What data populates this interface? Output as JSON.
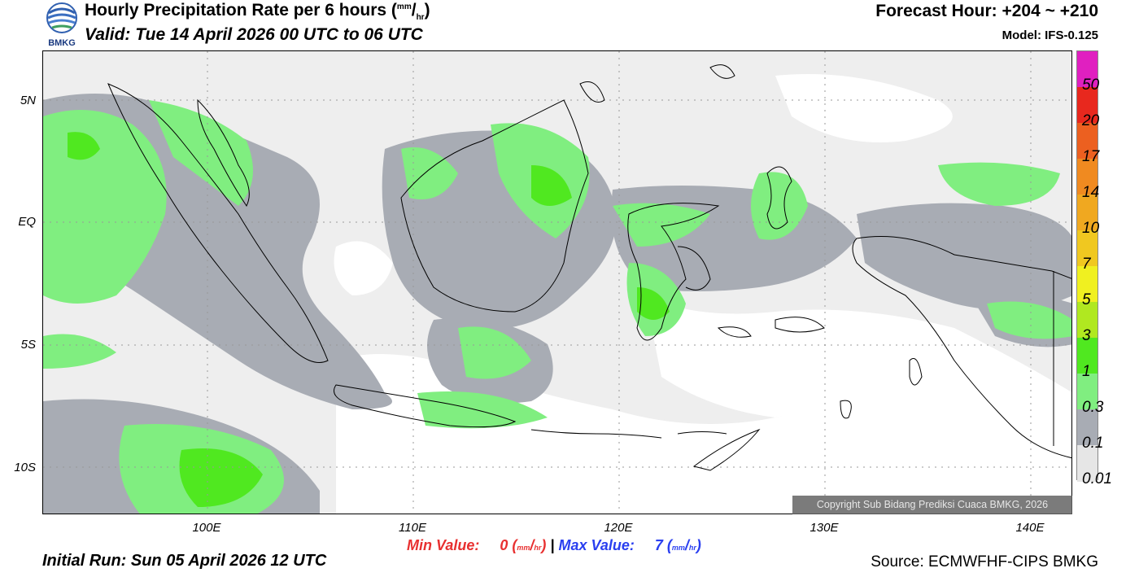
{
  "header": {
    "logo_text": "BMKG",
    "title": "Hourly Precipitation Rate per 6 hours",
    "title_unit_num": "mm",
    "title_unit_den": "hr",
    "valid": "Valid: Tue 14 April 2026 00 UTC to 06 UTC",
    "forecast_hour": "Forecast Hour: +204 ~ +210",
    "model": "Model: IFS-0.125"
  },
  "map": {
    "lat_labels": [
      "5N",
      "EQ",
      "5S",
      "10S"
    ],
    "lon_labels": [
      "100E",
      "110E",
      "120E",
      "130E",
      "140E"
    ],
    "copyright": "Copyright Sub Bidang Prediksi Cuaca BMKG, 2026"
  },
  "stats": {
    "min_label": "Min Value:",
    "min_value": "0",
    "max_label": "Max Value:",
    "max_value": "7",
    "unit_num": "mm",
    "unit_den": "hr",
    "separator": "|"
  },
  "footer": {
    "initial_run": "Initial Run: Sun 05 April 2026 12 UTC",
    "source": "Source: ECMWFHF-CIPS BMKG"
  },
  "colorbar": {
    "labels": [
      "50",
      "20",
      "17",
      "14",
      "10",
      "7",
      "5",
      "3",
      "1",
      "0.3",
      "0.1",
      "0.01"
    ],
    "colors": [
      "#e020c0",
      "#e8281e",
      "#ec6020",
      "#f08a20",
      "#f0a820",
      "#f0c820",
      "#f0f020",
      "#b0e820",
      "#50e820",
      "#80ee80",
      "#a8acb4",
      "#e6e6e6"
    ]
  }
}
